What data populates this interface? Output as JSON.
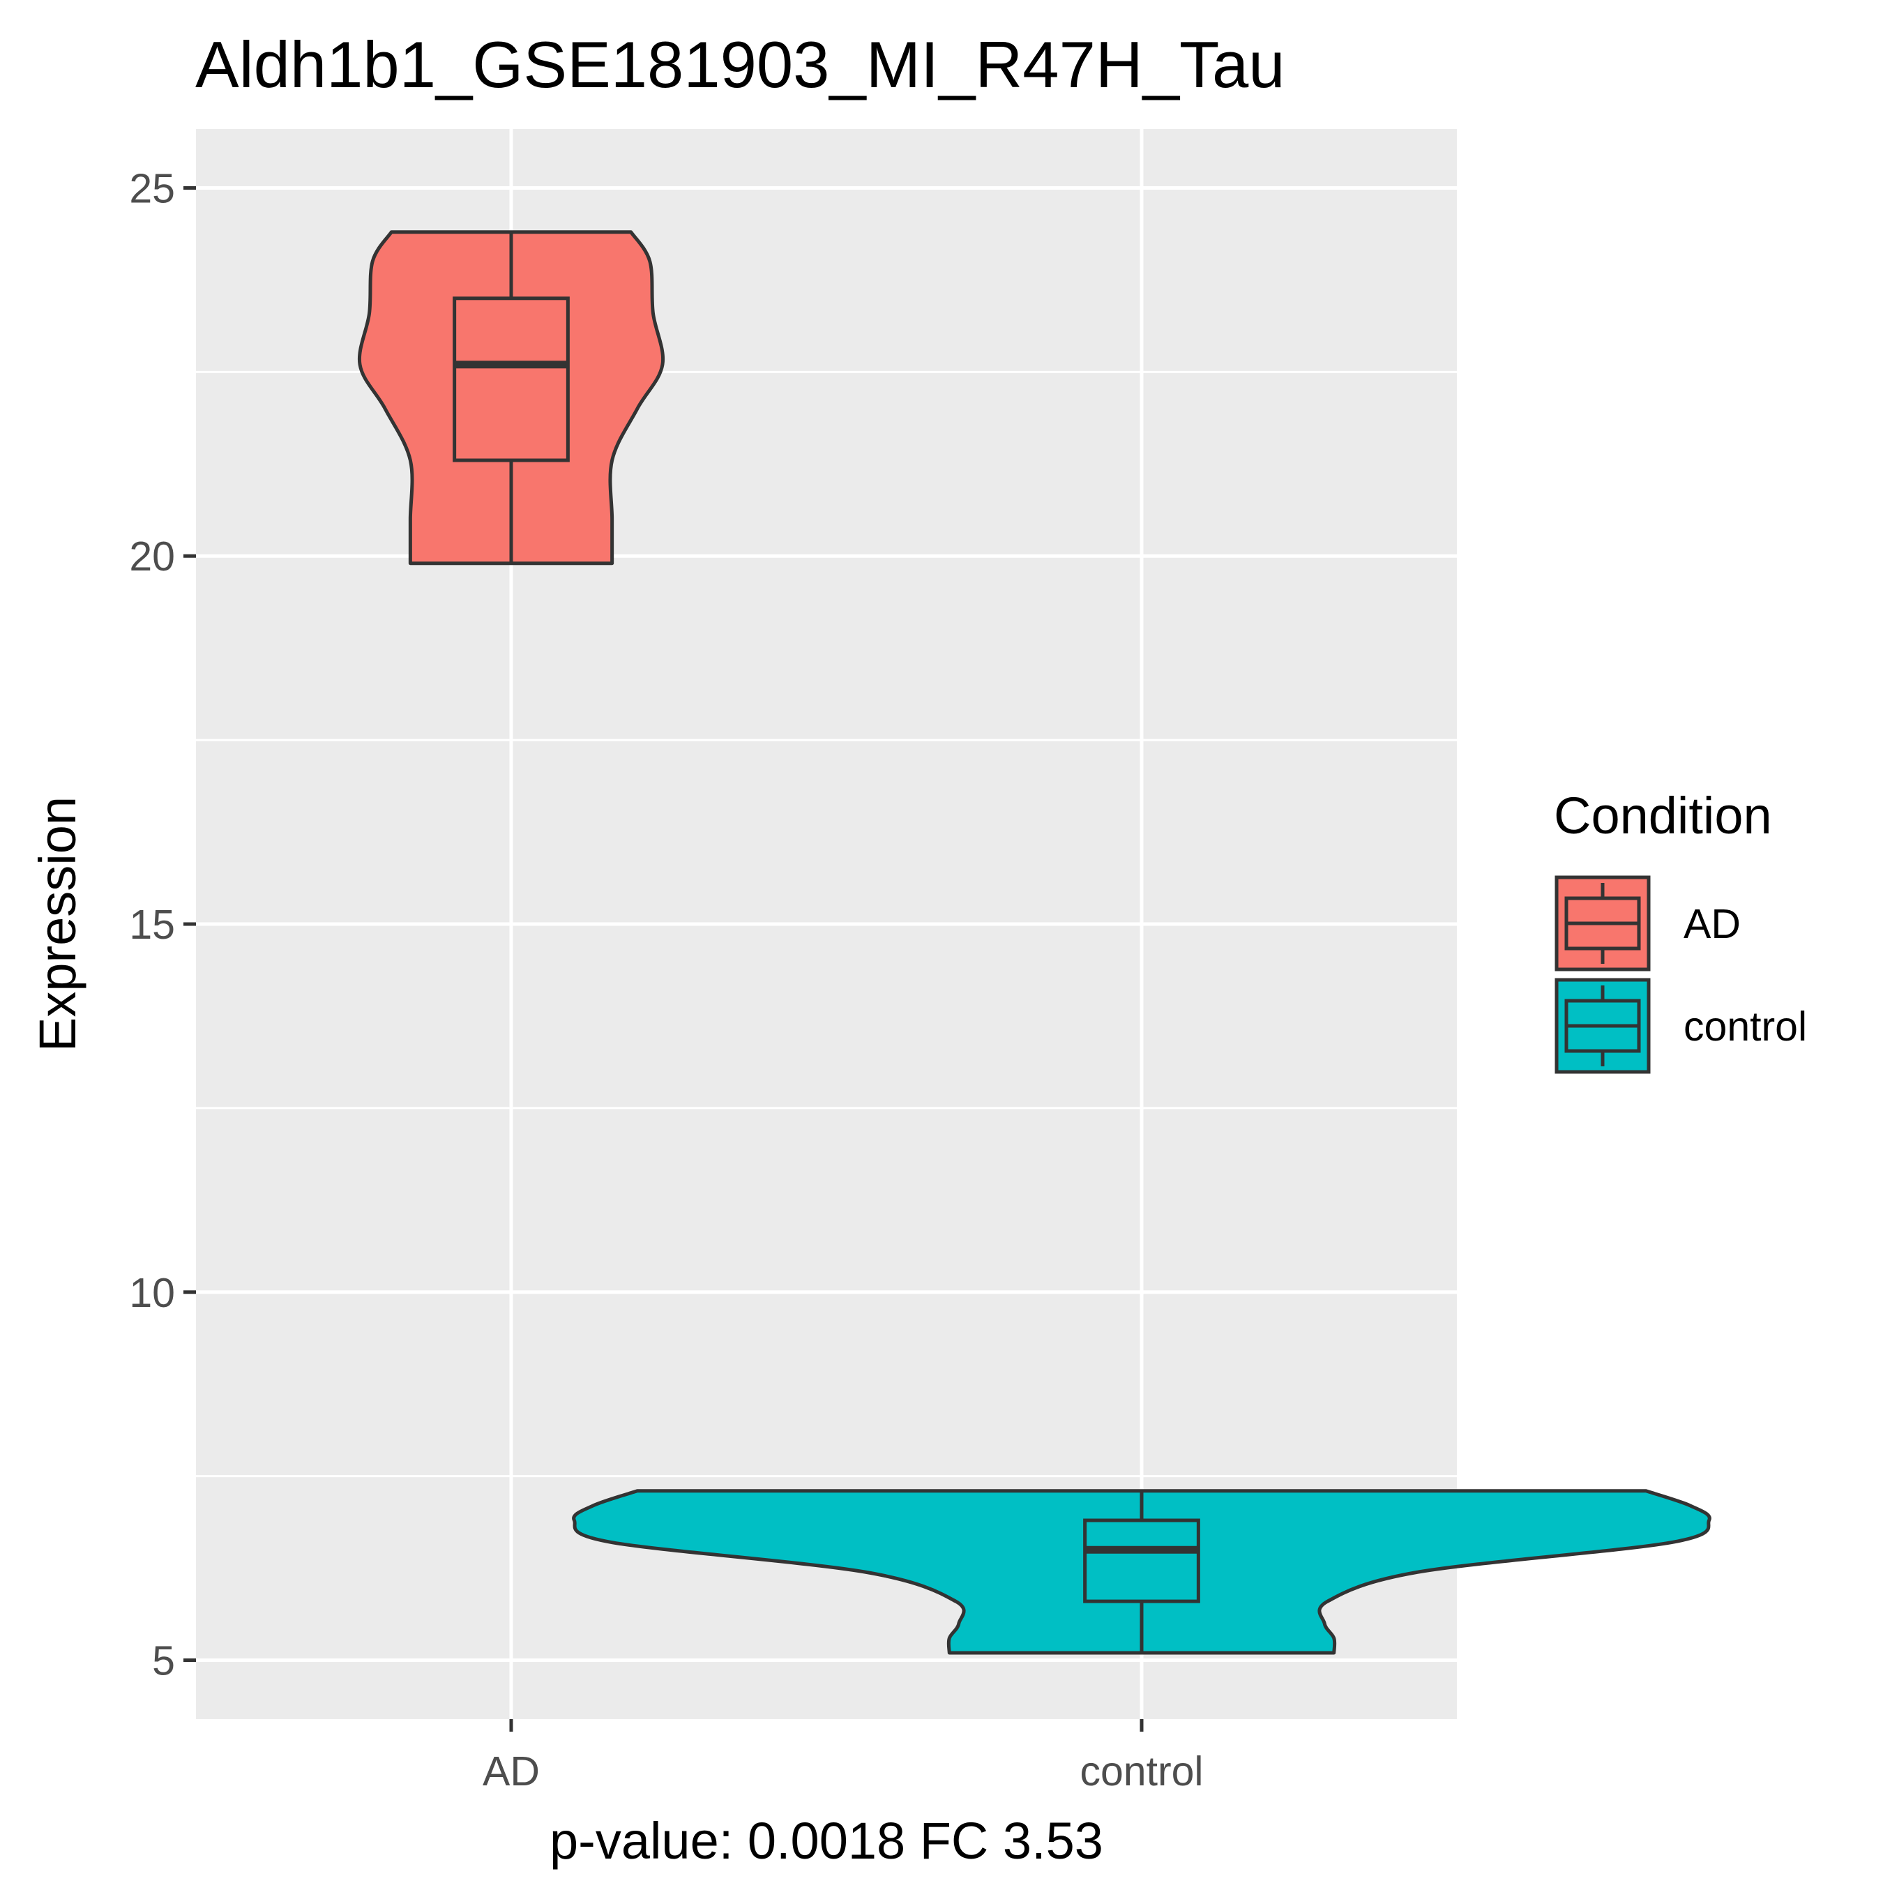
{
  "chart_data": {
    "type": "violin",
    "title": "Aldh1b1_GSE181903_MI_R47H_Tau",
    "xlabel": "p-value: 0.0018 FC 3.53",
    "ylabel": "Expression",
    "categories": [
      "AD",
      "control"
    ],
    "ylim": [
      4.2,
      25.8
    ],
    "yticks": [
      5,
      10,
      15,
      20,
      25
    ],
    "grid": true,
    "legend": {
      "title": "Condition",
      "position": "right",
      "entries": [
        {
          "label": "AD",
          "color": "#F8766D"
        },
        {
          "label": "control",
          "color": "#00BFC4"
        }
      ]
    },
    "series": [
      {
        "category": "AD",
        "color": "#F8766D",
        "box": {
          "min": 19.9,
          "q1": 21.3,
          "median": 22.6,
          "q3": 23.5,
          "max": 24.4
        },
        "violin": {
          "y": [
            19.9,
            20.5,
            21.3,
            22.0,
            22.6,
            23.3,
            24.0,
            24.4
          ],
          "half_width": [
            0.16,
            0.16,
            0.16,
            0.2,
            0.24,
            0.225,
            0.22,
            0.19
          ]
        }
      },
      {
        "category": "control",
        "color": "#00BFC4",
        "box": {
          "min": 5.1,
          "q1": 5.8,
          "median": 6.5,
          "q3": 6.9,
          "max": 7.3
        },
        "violin": {
          "y": [
            5.1,
            5.3,
            5.5,
            5.8,
            6.2,
            6.6,
            6.9,
            7.1,
            7.3
          ],
          "half_width": [
            0.305,
            0.305,
            0.29,
            0.295,
            0.44,
            0.84,
            0.9,
            0.87,
            0.8
          ]
        }
      }
    ],
    "colors": {
      "panel_background": "#EBEBEB",
      "grid": "#FFFFFF",
      "outline": "#333333"
    }
  }
}
